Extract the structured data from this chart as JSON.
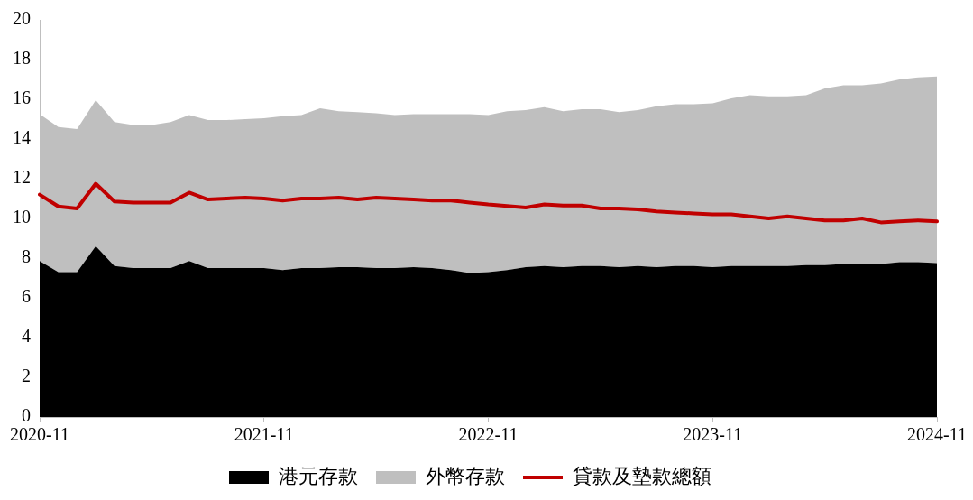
{
  "chart_data": {
    "type": "area",
    "stacked": true,
    "categories": [
      "2020-11",
      null,
      null,
      null,
      null,
      null,
      null,
      null,
      null,
      null,
      null,
      null,
      "2021-11",
      null,
      null,
      null,
      null,
      null,
      null,
      null,
      null,
      null,
      null,
      null,
      "2022-11",
      null,
      null,
      null,
      null,
      null,
      null,
      null,
      null,
      null,
      null,
      null,
      "2023-11",
      null,
      null,
      null,
      null,
      null,
      null,
      null,
      null,
      null,
      null,
      null,
      "2024-11"
    ],
    "series": [
      {
        "name": "港元存款",
        "color": "#000000",
        "values": [
          7.85,
          7.3,
          7.3,
          8.6,
          7.6,
          7.5,
          7.5,
          7.5,
          7.85,
          7.5,
          7.5,
          7.5,
          7.5,
          7.4,
          7.5,
          7.5,
          7.55,
          7.55,
          7.5,
          7.5,
          7.55,
          7.5,
          7.4,
          7.25,
          7.3,
          7.4,
          7.55,
          7.6,
          7.55,
          7.6,
          7.6,
          7.55,
          7.6,
          7.55,
          7.6,
          7.6,
          7.55,
          7.6,
          7.6,
          7.6,
          7.6,
          7.65,
          7.65,
          7.7,
          7.7,
          7.7,
          7.8,
          7.8,
          7.75
        ]
      },
      {
        "name": "外幣存款",
        "color": "#bfbfbf",
        "values": [
          7.4,
          7.3,
          7.2,
          7.35,
          7.25,
          7.2,
          7.2,
          7.35,
          7.35,
          7.45,
          7.45,
          7.5,
          7.55,
          7.75,
          7.7,
          8.05,
          7.85,
          7.8,
          7.8,
          7.7,
          7.7,
          7.75,
          7.85,
          8.0,
          7.9,
          8.0,
          7.9,
          8.0,
          7.85,
          7.9,
          7.9,
          7.8,
          7.85,
          8.1,
          8.15,
          8.15,
          8.25,
          8.45,
          8.6,
          8.55,
          8.55,
          8.55,
          8.9,
          9.0,
          9.0,
          9.1,
          9.2,
          9.3,
          9.4
        ]
      },
      {
        "name": "貸款及墊款總額",
        "type": "line",
        "color": "#c00000",
        "values": [
          11.2,
          10.6,
          10.5,
          11.75,
          10.85,
          10.8,
          10.8,
          10.8,
          11.3,
          10.95,
          11.0,
          11.05,
          11.0,
          10.9,
          11.0,
          11.0,
          11.05,
          10.95,
          11.05,
          11.0,
          10.95,
          10.9,
          10.9,
          10.8,
          10.7,
          10.63,
          10.55,
          10.7,
          10.65,
          10.65,
          10.5,
          10.5,
          10.45,
          10.35,
          10.3,
          10.25,
          10.2,
          10.2,
          10.1,
          10.0,
          10.1,
          10.0,
          9.9,
          9.9,
          10.0,
          9.8,
          9.85,
          9.9,
          9.85
        ]
      }
    ],
    "ylim": [
      0,
      20
    ],
    "yticks": [
      0,
      2,
      4,
      6,
      8,
      10,
      12,
      14,
      16,
      18,
      20
    ],
    "grid": false,
    "legend": "bottom",
    "marker": "none",
    "line_style": "solid"
  }
}
